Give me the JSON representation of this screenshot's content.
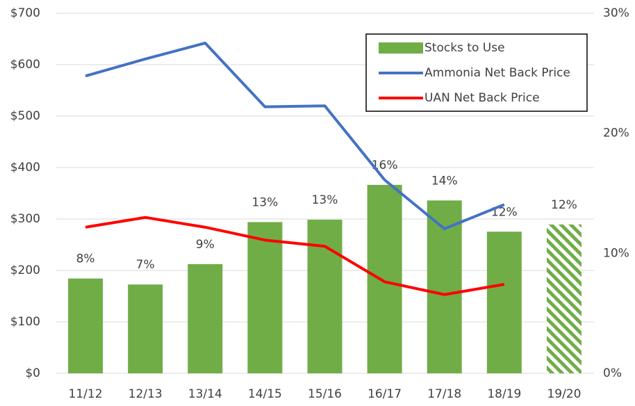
{
  "chart_data": {
    "type": "combo",
    "categories": [
      "11/12",
      "12/13",
      "13/14",
      "14/15",
      "15/16",
      "16/17",
      "17/18",
      "18/19",
      "19/20"
    ],
    "series": [
      {
        "name": "Stocks to Use",
        "type": "bar",
        "axis": "y2",
        "color": "#70ad47",
        "values": [
          7.9,
          7.4,
          9.1,
          12.6,
          12.8,
          15.7,
          14.4,
          11.8,
          12.4
        ],
        "value_labels": [
          "8%",
          "7%",
          "9%",
          "13%",
          "13%",
          "16%",
          "14%",
          "12%",
          "12%"
        ],
        "hatched": [
          false,
          false,
          false,
          false,
          false,
          false,
          false,
          false,
          true
        ]
      },
      {
        "name": "Ammonia Net Back Price",
        "type": "line",
        "color": "#4472c4",
        "values": [
          578,
          611,
          642,
          518,
          520,
          376,
          281,
          328,
          null
        ]
      },
      {
        "name": "UAN Net Back Price",
        "type": "line",
        "color": "#ff0000",
        "values": [
          284,
          303,
          284,
          259,
          247,
          178,
          153,
          173,
          null
        ]
      }
    ],
    "ylim": [
      0,
      700
    ],
    "yticks": [
      {
        "value": 0,
        "label": "$0"
      },
      {
        "value": 100,
        "label": "$100"
      },
      {
        "value": 200,
        "label": "$200"
      },
      {
        "value": 300,
        "label": "$300"
      },
      {
        "value": 400,
        "label": "$400"
      },
      {
        "value": 500,
        "label": "$500"
      },
      {
        "value": 600,
        "label": "$600"
      },
      {
        "value": 700,
        "label": "$700"
      }
    ],
    "y2lim": [
      0,
      30
    ],
    "y2ticks": [
      {
        "value": 0,
        "label": "0%"
      },
      {
        "value": 10,
        "label": "10%"
      },
      {
        "value": 20,
        "label": "20%"
      },
      {
        "value": 30,
        "label": "30%"
      }
    ],
    "grid": true,
    "legend": "top-right"
  }
}
